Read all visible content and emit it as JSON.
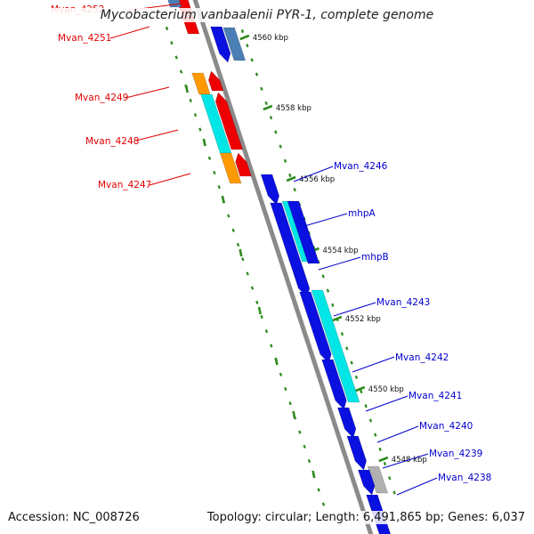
{
  "title": "Mycobacterium vanbaalenii PYR-1, complete genome",
  "footer": {
    "accession": "Accession: NC_008726",
    "summary": "Topology: circular; Length: 6,491,865 bp; Genes: 6,037"
  },
  "colors": {
    "backbone": "#8a8a8a",
    "tick": "#2e8b1e",
    "reverse_label": "#e00000",
    "forward_label": "#0000cc",
    "gene_blue": "#0a10e0",
    "gene_cyan": "#00e6e6",
    "gene_red": "#ee0000",
    "gene_orange": "#ff9900",
    "gene_steel": "#4a7fb5",
    "gene_gray": "#b0b0b0"
  },
  "scale_labels": [
    "4560 kbp",
    "4558 kbp",
    "4556 kbp",
    "4554 kbp",
    "4552 kbp",
    "4550 kbp",
    "4548 kbp"
  ],
  "reverse_genes": [
    {
      "name": "Mvan_4252"
    },
    {
      "name": "Mvan_4251"
    },
    {
      "name": "Mvan_4249"
    },
    {
      "name": "Mvan_4248"
    },
    {
      "name": "Mvan_4247"
    }
  ],
  "forward_genes": [
    {
      "name": "Mvan_4246"
    },
    {
      "name": "mhpA"
    },
    {
      "name": "mhpB"
    },
    {
      "name": "Mvan_4243"
    },
    {
      "name": "Mvan_4242"
    },
    {
      "name": "Mvan_4241"
    },
    {
      "name": "Mvan_4240"
    },
    {
      "name": "Mvan_4239"
    },
    {
      "name": "Mvan_4238"
    }
  ]
}
